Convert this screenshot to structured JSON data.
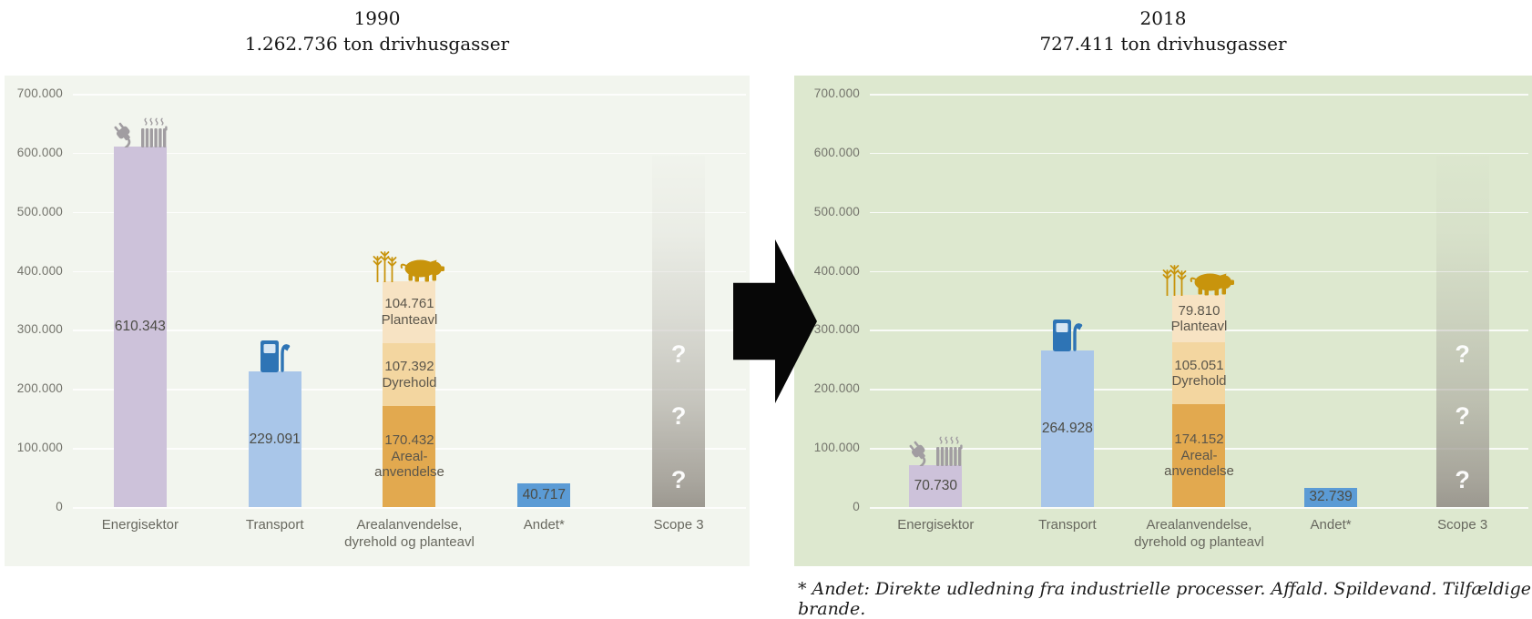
{
  "page": {
    "footnote": "* Andet: Direkte udledning fra industrielle processer. Affald. Spildevand. Tilfældige brande."
  },
  "colors": {
    "panel_left_bg": "#f2f5ee",
    "panel_right_bg": "#dde8cf",
    "energisektor": "#cdc2da",
    "transport": "#a9c6e9",
    "areal": "#e2a94f",
    "dyrehold": "#f3d6a0",
    "planteavl": "#f7e3c3",
    "andet": "#5b9bd5",
    "scope3_gray": "#a5a199",
    "icon_gray": "#a19da1",
    "icon_blue": "#2e74b5",
    "icon_gold": "#c8940c",
    "arrow_black": "#070707"
  },
  "chart_data": [
    {
      "type": "bar",
      "title": "1990",
      "subtitle": "1.262.736 ton drivhusgasser",
      "ylabel": "",
      "xlabel": "",
      "ylim": [
        0,
        700000
      ],
      "grid": true,
      "y_tick_labels": [
        "700.000",
        "600.000",
        "500.000",
        "400.000",
        "300.000",
        "200.000",
        "100.000",
        "0"
      ],
      "categories": [
        "Energisektor",
        "Transport",
        "Arealanvendelse,\ndyrehold og planteavl",
        "Andet*",
        "Scope 3"
      ],
      "bars": [
        {
          "category": "Energisektor",
          "value": 610343,
          "label": "610.343",
          "color_key": "energisektor",
          "icons": [
            "plug-icon",
            "radiator-icon"
          ]
        },
        {
          "category": "Transport",
          "value": 229091,
          "label": "229.091",
          "color_key": "transport",
          "icons": [
            "fuel-pump-icon"
          ]
        },
        {
          "category": "Arealanvendelse,\ndyrehold og planteavl",
          "stacked": true,
          "icons": [
            "wheat-icon",
            "pig-icon"
          ],
          "segments": [
            {
              "name": "Areal-\nanvendelse",
              "value": 170432,
              "label": "170.432",
              "color_key": "areal"
            },
            {
              "name": "Dyrehold",
              "value": 107392,
              "label": "107.392",
              "color_key": "dyrehold"
            },
            {
              "name": "Planteavl",
              "value": 104761,
              "label": "104.761",
              "color_key": "planteavl"
            }
          ]
        },
        {
          "category": "Andet*",
          "value": 40717,
          "label": "40.717",
          "color_key": "andet"
        },
        {
          "category": "Scope 3",
          "unknown": true,
          "display_height_value": 595000,
          "question_marks": [
            "?",
            "?",
            "?"
          ],
          "color_key": "scope3_gray"
        }
      ]
    },
    {
      "type": "bar",
      "title": "2018",
      "subtitle": "727.411 ton drivhusgasser",
      "ylabel": "",
      "xlabel": "",
      "ylim": [
        0,
        700000
      ],
      "grid": true,
      "y_tick_labels": [
        "700.000",
        "600.000",
        "500.000",
        "400.000",
        "300.000",
        "200.000",
        "100.000",
        "0"
      ],
      "categories": [
        "Energisektor",
        "Transport",
        "Arealanvendelse,\ndyrehold og planteavl",
        "Andet*",
        "Scope 3"
      ],
      "bars": [
        {
          "category": "Energisektor",
          "value": 70730,
          "label": "70.730",
          "color_key": "energisektor",
          "icons": [
            "plug-icon",
            "radiator-icon"
          ]
        },
        {
          "category": "Transport",
          "value": 264928,
          "label": "264.928",
          "color_key": "transport",
          "icons": [
            "fuel-pump-icon"
          ]
        },
        {
          "category": "Arealanvendelse,\ndyrehold og planteavl",
          "stacked": true,
          "icons": [
            "wheat-icon",
            "pig-icon"
          ],
          "segments": [
            {
              "name": "Areal-\nanvendelse",
              "value": 174152,
              "label": "174.152",
              "color_key": "areal"
            },
            {
              "name": "Dyrehold",
              "value": 105051,
              "label": "105.051",
              "color_key": "dyrehold"
            },
            {
              "name": "Planteavl",
              "value": 79810,
              "label": "79.810",
              "color_key": "planteavl"
            }
          ]
        },
        {
          "category": "Andet*",
          "value": 32739,
          "label": "32.739",
          "color_key": "andet"
        },
        {
          "category": "Scope 3",
          "unknown": true,
          "display_height_value": 595000,
          "question_marks": [
            "?",
            "?",
            "?"
          ],
          "color_key": "scope3_gray"
        }
      ]
    }
  ]
}
